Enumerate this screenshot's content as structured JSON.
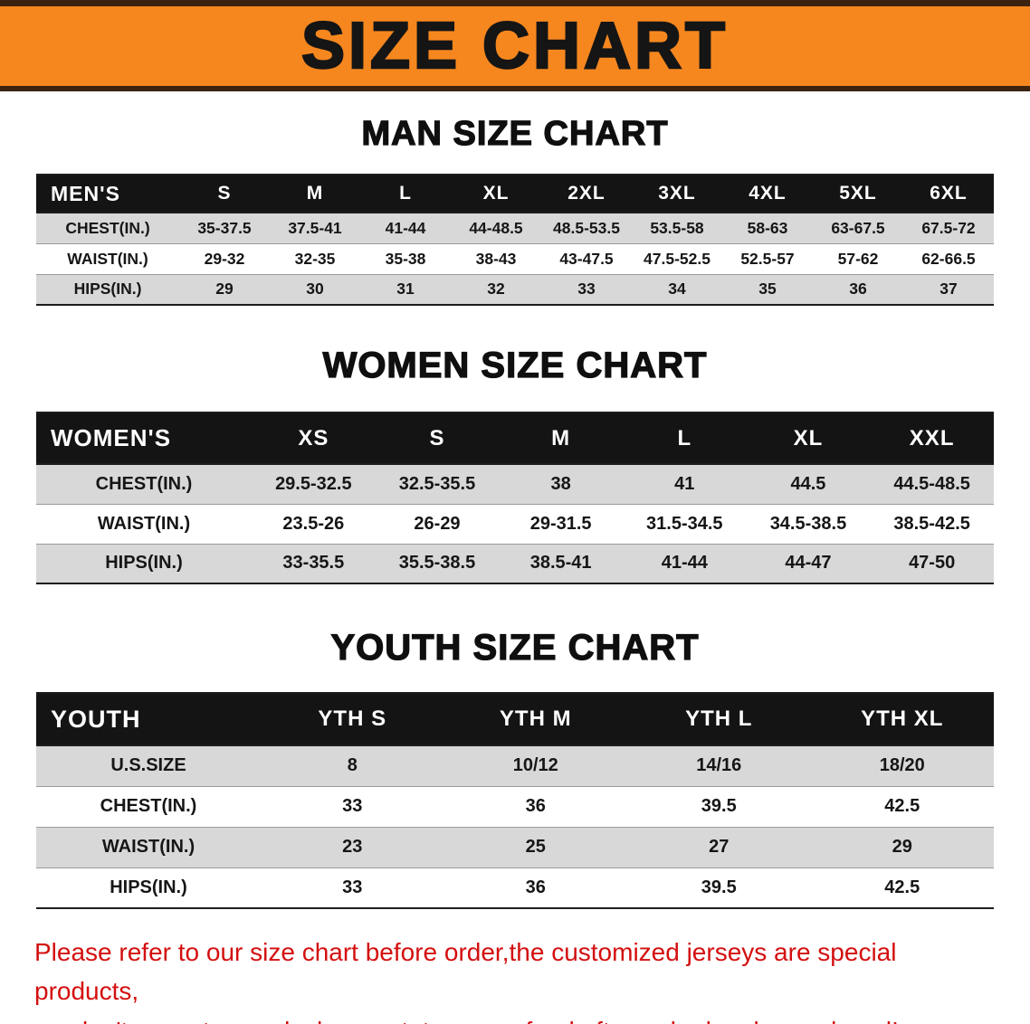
{
  "banner": {
    "title": "SIZE CHART"
  },
  "colors": {
    "banner_bg": "#f6871f",
    "header_bg": "#141414",
    "row_alt": "#d8d8d8",
    "disclaimer_red": "#d40f0f"
  },
  "sections": [
    {
      "id": "men",
      "heading": "MAN SIZE CHART",
      "table": {
        "header": [
          "MEN'S",
          "S",
          "M",
          "L",
          "XL",
          "2XL",
          "3XL",
          "4XL",
          "5XL",
          "6XL"
        ],
        "rows": [
          [
            "CHEST(IN.)",
            "35-37.5",
            "37.5-41",
            "41-44",
            "44-48.5",
            "48.5-53.5",
            "53.5-58",
            "58-63",
            "63-67.5",
            "67.5-72"
          ],
          [
            "WAIST(IN.)",
            "29-32",
            "32-35",
            "35-38",
            "38-43",
            "43-47.5",
            "47.5-52.5",
            "52.5-57",
            "57-62",
            "62-66.5"
          ],
          [
            "HIPS(IN.)",
            "29",
            "30",
            "31",
            "32",
            "33",
            "34",
            "35",
            "36",
            "37"
          ]
        ]
      }
    },
    {
      "id": "women",
      "heading": "WOMEN SIZE CHART",
      "table": {
        "header": [
          "WOMEN'S",
          "XS",
          "S",
          "M",
          "L",
          "XL",
          "XXL"
        ],
        "rows": [
          [
            "CHEST(IN.)",
            "29.5-32.5",
            "32.5-35.5",
            "38",
            "41",
            "44.5",
            "44.5-48.5"
          ],
          [
            "WAIST(IN.)",
            "23.5-26",
            "26-29",
            "29-31.5",
            "31.5-34.5",
            "34.5-38.5",
            "38.5-42.5"
          ],
          [
            "HIPS(IN.)",
            "33-35.5",
            "35.5-38.5",
            "38.5-41",
            "41-44",
            "44-47",
            "47-50"
          ]
        ]
      }
    },
    {
      "id": "youth",
      "heading": "YOUTH SIZE CHART",
      "table": {
        "header": [
          "YOUTH",
          "YTH S",
          "YTH M",
          "YTH L",
          "YTH XL"
        ],
        "rows": [
          [
            "U.S.SIZE",
            "8",
            "10/12",
            "14/16",
            "18/20"
          ],
          [
            "CHEST(IN.)",
            "33",
            "36",
            "39.5",
            "42.5"
          ],
          [
            "WAIST(IN.)",
            "23",
            "25",
            "27",
            "29"
          ],
          [
            "HIPS(IN.)",
            "33",
            "36",
            "39.5",
            "42.5"
          ]
        ]
      }
    }
  ],
  "disclaimer": {
    "line1": "Please refer to our size chart before order,the customized jerseys are special products,",
    "line2": "we don't accept cancel, change, teturn or refund after order has been placed!"
  }
}
